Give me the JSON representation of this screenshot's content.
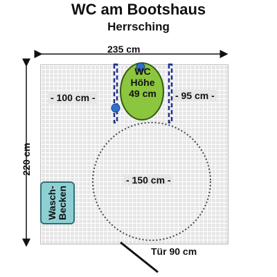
{
  "header": {
    "title": "WC am Bootshaus",
    "subtitle": "Herrsching"
  },
  "dimensions": {
    "room_width": "235 cm",
    "room_depth": "220 cm",
    "left_of_wc": "- 100 cm -",
    "right_of_wc": "- 95 cm -",
    "turning_circle": "- 150 cm -",
    "door": "Tür  90 cm"
  },
  "wc": {
    "label_line1": "WC",
    "label_line2": "Höhe",
    "label_line3": "49 cm"
  },
  "sink": {
    "label_line1": "Wasch-",
    "label_line2": "Becken"
  },
  "colors": {
    "wc_fill": "#8cc63f",
    "grab_bar": "#1f2f8f",
    "sink_fill": "#8ecfd3",
    "floor": "#e6e6e6"
  }
}
